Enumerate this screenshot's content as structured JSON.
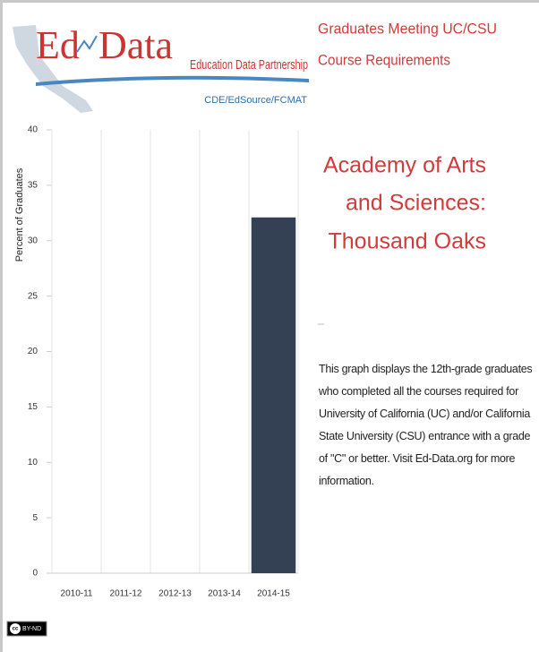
{
  "logo": {
    "ed": "Ed",
    "data": "Data",
    "tagline": "Education Data Partnership",
    "partners": "CDE/EdSource/FCMAT"
  },
  "header": {
    "title_lines": [
      "Graduates Meeting UC/CSU",
      "Course Requirements"
    ]
  },
  "school": {
    "name_lines": [
      "Academy of Arts",
      "and Sciences:",
      "Thousand Oaks"
    ]
  },
  "description": "This graph displays the 12th-grade graduates who completed all the courses required for University of California (UC) and/or California State University (CSU) entrance with a grade of \"C\" or better. Visit Ed-Data.org for more information.",
  "license": {
    "cc": "cc",
    "terms": "BY-ND"
  },
  "chart_data": {
    "type": "bar",
    "ylabel": "Percent of Graduates",
    "categories": [
      "2010-11",
      "2011-12",
      "2012-13",
      "2013-14",
      "2014-15"
    ],
    "values": [
      null,
      null,
      null,
      null,
      32.1
    ],
    "color": "#344154",
    "ylim": [
      0,
      40
    ],
    "yticks": [
      0,
      5,
      10,
      15,
      20,
      25,
      30,
      35,
      40
    ],
    "grid": true
  }
}
